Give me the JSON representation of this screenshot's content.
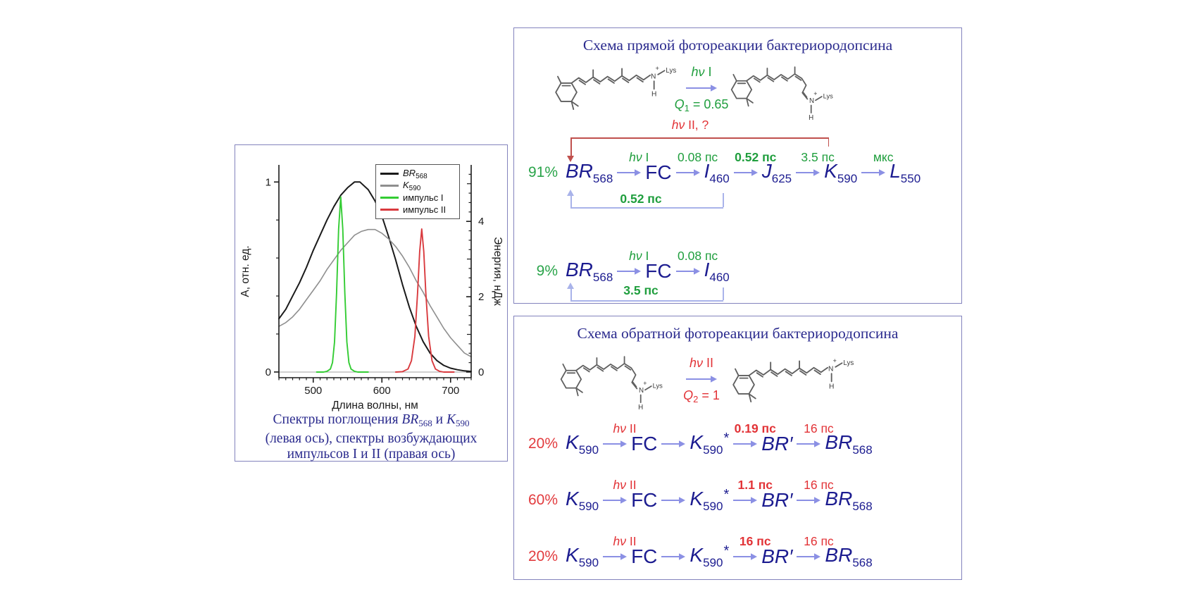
{
  "colors": {
    "panel_border": "#8383bd",
    "title_text": "#2b2b8e",
    "species_text": "#1c1c90",
    "green": "#1f9e3d",
    "red": "#e23337",
    "arrow": "#8b90e4",
    "loop_arrow": "#a9b3ea",
    "back_bracket": "#c0504d",
    "br568_curve": "#1a1a1a",
    "k590_curve": "#8f8f8f",
    "pulse1_curve": "#33cc33",
    "pulse2_curve": "#d93a3e"
  },
  "structures": {
    "n": "N",
    "plus": "+",
    "lys": "Lys",
    "h": "H"
  },
  "chart_panel": {
    "legend": [
      {
        "label": "BR",
        "sub": "568",
        "italic": 1,
        "color": "#1a1a1a"
      },
      {
        "label": "K",
        "sub": "590",
        "italic": 1,
        "color": "#8f8f8f"
      },
      {
        "label": "импульс I",
        "color": "#33cc33"
      },
      {
        "label": "импульс II",
        "color": "#d93a3e"
      }
    ],
    "caption": {
      "seg1": "Спектры поглощения ",
      "sp1": "BR",
      "sp1_sub": "568",
      "seg2": " и ",
      "sp2": "K",
      "sp2_sub": "590",
      "line2": "(левая ось), спектры возбуждающих",
      "line3": "импульсов I и II (правая ось)"
    }
  },
  "chart_data": {
    "type": "line",
    "title": "",
    "xlabel": "Длина волны, нм",
    "ylabel_left": "А, отн. ед.",
    "ylabel_right": "Энергия, нДж",
    "x_range": [
      450,
      730
    ],
    "y_left_range": [
      -0.03,
      1.09
    ],
    "y_right_range": [
      -0.15,
      5.5
    ],
    "x_major_ticks": [
      500,
      600,
      700
    ],
    "x_minor_step": 10,
    "y_left_label_ticks": [
      0,
      1
    ],
    "y_left_minor_step": 0.2,
    "y_right_label_ticks": [
      0,
      2,
      4
    ],
    "y_right_minor_step": 0.25,
    "zero_line": {
      "axis": "right",
      "y": 0,
      "color": "#b3b3b3"
    },
    "series": [
      {
        "name": "BR568",
        "axis": "left",
        "color": "#1a1a1a",
        "width": 2,
        "points": [
          [
            450,
            0.28
          ],
          [
            460,
            0.33
          ],
          [
            470,
            0.4
          ],
          [
            480,
            0.47
          ],
          [
            490,
            0.55
          ],
          [
            500,
            0.64
          ],
          [
            510,
            0.72
          ],
          [
            520,
            0.8
          ],
          [
            530,
            0.87
          ],
          [
            540,
            0.93
          ],
          [
            550,
            0.97
          ],
          [
            560,
            1.0
          ],
          [
            568,
            1.0
          ],
          [
            580,
            0.96
          ],
          [
            590,
            0.9
          ],
          [
            600,
            0.82
          ],
          [
            610,
            0.71
          ],
          [
            620,
            0.59
          ],
          [
            630,
            0.46
          ],
          [
            640,
            0.34
          ],
          [
            650,
            0.24
          ],
          [
            660,
            0.16
          ],
          [
            670,
            0.1
          ],
          [
            680,
            0.06
          ],
          [
            690,
            0.035
          ],
          [
            700,
            0.02
          ],
          [
            710,
            0.012
          ],
          [
            720,
            0.006
          ],
          [
            730,
            0.003
          ]
        ]
      },
      {
        "name": "K590",
        "axis": "left",
        "color": "#8f8f8f",
        "width": 1.6,
        "points": [
          [
            450,
            0.24
          ],
          [
            460,
            0.26
          ],
          [
            470,
            0.29
          ],
          [
            480,
            0.33
          ],
          [
            490,
            0.38
          ],
          [
            500,
            0.43
          ],
          [
            510,
            0.48
          ],
          [
            520,
            0.54
          ],
          [
            530,
            0.59
          ],
          [
            540,
            0.64
          ],
          [
            550,
            0.68
          ],
          [
            560,
            0.72
          ],
          [
            570,
            0.74
          ],
          [
            580,
            0.75
          ],
          [
            590,
            0.75
          ],
          [
            600,
            0.73
          ],
          [
            610,
            0.7
          ],
          [
            620,
            0.66
          ],
          [
            630,
            0.61
          ],
          [
            640,
            0.55
          ],
          [
            650,
            0.48
          ],
          [
            660,
            0.42
          ],
          [
            670,
            0.35
          ],
          [
            680,
            0.29
          ],
          [
            690,
            0.23
          ],
          [
            700,
            0.18
          ],
          [
            710,
            0.14
          ],
          [
            720,
            0.1
          ],
          [
            730,
            0.08
          ]
        ]
      },
      {
        "name": "импульс I",
        "axis": "right",
        "color": "#33cc33",
        "width": 1.9,
        "points": [
          [
            505,
            0
          ],
          [
            515,
            0
          ],
          [
            520,
            0.02
          ],
          [
            525,
            0.08
          ],
          [
            528,
            0.25
          ],
          [
            531,
            0.8
          ],
          [
            534,
            2.1
          ],
          [
            537,
            3.8
          ],
          [
            540,
            4.65
          ],
          [
            543,
            3.8
          ],
          [
            546,
            2.1
          ],
          [
            549,
            0.8
          ],
          [
            552,
            0.25
          ],
          [
            555,
            0.08
          ],
          [
            560,
            0.02
          ],
          [
            565,
            0
          ],
          [
            580,
            0
          ]
        ]
      },
      {
        "name": "импульс II",
        "axis": "right",
        "color": "#d93a3e",
        "width": 1.9,
        "points": [
          [
            620,
            0
          ],
          [
            630,
            0.01
          ],
          [
            638,
            0.08
          ],
          [
            643,
            0.3
          ],
          [
            648,
            0.95
          ],
          [
            652,
            2.1
          ],
          [
            655,
            3.2
          ],
          [
            658,
            3.8
          ],
          [
            661,
            3.2
          ],
          [
            664,
            2.1
          ],
          [
            668,
            0.95
          ],
          [
            673,
            0.3
          ],
          [
            678,
            0.08
          ],
          [
            684,
            0.02
          ],
          [
            690,
            0
          ],
          [
            700,
            0
          ],
          [
            705,
            0
          ]
        ]
      }
    ]
  },
  "forward_panel": {
    "title": "Схема прямой фотореакции бактериородопсина",
    "photo": {
      "hv": "hν",
      "num": " I",
      "q": "Q",
      "q_sub": "1",
      "q_eq": " = 0.65"
    },
    "back_arrow_label": {
      "hv": "hν",
      "rest": " II, ?"
    },
    "rows": [
      {
        "percent": "91%",
        "species": [
          {
            "b": "BR",
            "sub": "568",
            "it": 1
          },
          {
            "b": "FC"
          },
          {
            "b": "I",
            "sub": "460",
            "it": 1
          },
          {
            "b": "J",
            "sub": "625",
            "it": 1
          },
          {
            "b": "K",
            "sub": "590",
            "it": 1
          },
          {
            "b": "L",
            "sub": "550",
            "it": 1
          }
        ],
        "arrow_labels": [
          {
            "t": "hν I"
          },
          {
            "t": "0.08 пс"
          },
          {
            "t": "0.52 пс",
            "bold": 1
          },
          {
            "t": "3.5 пс"
          },
          {
            "t": "мкс"
          }
        ],
        "loop_label": {
          "t": "0.52 пс",
          "bold": 1
        }
      },
      {
        "percent": "9%",
        "species": [
          {
            "b": "BR",
            "sub": "568",
            "it": 1
          },
          {
            "b": "FC"
          },
          {
            "b": "I",
            "sub": "460",
            "it": 1
          }
        ],
        "arrow_labels": [
          {
            "t": "hν I"
          },
          {
            "t": "0.08 пс"
          }
        ],
        "loop_label": {
          "t": "3.5 пс",
          "bold": 1
        }
      }
    ]
  },
  "reverse_panel": {
    "title": "Схема обратной фотореакции бактериородопсина",
    "photo": {
      "hv": "hν",
      "num": " II",
      "q": "Q",
      "q_sub": "2",
      "q_eq": " = 1"
    },
    "rows": [
      {
        "percent": "20%",
        "species": [
          {
            "b": "K",
            "sub": "590",
            "it": 1
          },
          {
            "b": "FC"
          },
          {
            "b": "K",
            "sub": "590",
            "sup": "*",
            "it": 1
          },
          {
            "b": "BR",
            "prime": "′",
            "it": 1
          },
          {
            "b": "BR",
            "sub": "568",
            "it": 1
          }
        ],
        "arrow_labels": [
          {
            "t": "hν II"
          },
          {
            "t": ""
          },
          {
            "t": "0.19 пс",
            "bold": 1
          },
          {
            "t": "16 пс"
          }
        ]
      },
      {
        "percent": "60%",
        "species": [
          {
            "b": "K",
            "sub": "590",
            "it": 1
          },
          {
            "b": "FC"
          },
          {
            "b": "K",
            "sub": "590",
            "sup": "*",
            "it": 1
          },
          {
            "b": "BR",
            "prime": "′",
            "it": 1
          },
          {
            "b": "BR",
            "sub": "568",
            "it": 1
          }
        ],
        "arrow_labels": [
          {
            "t": "hν II"
          },
          {
            "t": ""
          },
          {
            "t": "1.1 пс",
            "bold": 1
          },
          {
            "t": "16 пс"
          }
        ]
      },
      {
        "percent": "20%",
        "species": [
          {
            "b": "K",
            "sub": "590",
            "it": 1
          },
          {
            "b": "FC"
          },
          {
            "b": "K",
            "sub": "590",
            "sup": "*",
            "it": 1
          },
          {
            "b": "BR",
            "prime": "′",
            "it": 1
          },
          {
            "b": "BR",
            "sub": "568",
            "it": 1
          }
        ],
        "arrow_labels": [
          {
            "t": "hν II"
          },
          {
            "t": ""
          },
          {
            "t": "16 пс",
            "bold": 1
          },
          {
            "t": "16 пс"
          }
        ]
      }
    ]
  }
}
